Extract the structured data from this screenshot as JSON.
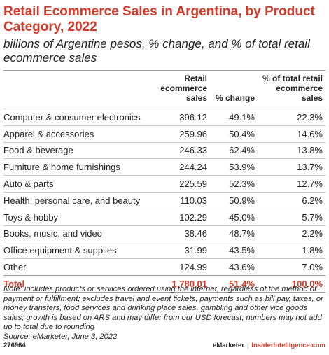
{
  "chart_data": {
    "type": "table",
    "title": "Retail Ecommerce Sales in Argentina, by Product Category, 2022",
    "subtitle": "billions of Argentine pesos, % change, and % of total retail ecommerce sales",
    "columns": [
      "Retail ecommerce sales",
      "% change",
      "% of total retail ecommerce sales"
    ],
    "rows": [
      {
        "category": "Computer & consumer electronics",
        "sales": "396.12",
        "change": "49.1%",
        "share": "22.3%"
      },
      {
        "category": "Apparel & accessories",
        "sales": "259.96",
        "change": "50.4%",
        "share": "14.6%"
      },
      {
        "category": "Food & beverage",
        "sales": "246.33",
        "change": "62.4%",
        "share": "13.8%"
      },
      {
        "category": "Furniture & home furnishings",
        "sales": "244.24",
        "change": "53.9%",
        "share": "13.7%"
      },
      {
        "category": "Auto & parts",
        "sales": "225.59",
        "change": "52.3%",
        "share": "12.7%"
      },
      {
        "category": "Health, personal care, and beauty",
        "sales": "110.03",
        "change": "50.9%",
        "share": "6.2%"
      },
      {
        "category": "Toys & hobby",
        "sales": "102.29",
        "change": "45.0%",
        "share": "5.7%"
      },
      {
        "category": "Books, music, and video",
        "sales": "38.46",
        "change": "48.7%",
        "share": "2.2%"
      },
      {
        "category": "Office equipment & supplies",
        "sales": "31.99",
        "change": "43.5%",
        "share": "1.8%"
      },
      {
        "category": "Other",
        "sales": "124.99",
        "change": "43.6%",
        "share": "7.0%"
      }
    ],
    "total": {
      "category": "Total",
      "sales": "1,780.01",
      "change": "51.4%",
      "share": "100.0%"
    }
  },
  "note": "Note: includes products or services ordered using the internet, regardless of the method of payment or fulfillment; excludes travel and event tickets, payments such as bill pay, taxes, or money transfers, food services and drinking place sales, gambling and other vice goods sales; growth is based on ARS and may differ from our USD forecast; numbers may not add up to total due to rounding",
  "source": "Source: eMarketer, June 3, 2022",
  "footer": {
    "chart_id": "276964",
    "brand": "eMarketer",
    "separator": "|",
    "brand2": "InsiderIntelligence.com"
  },
  "colors": {
    "accent": "#d23a2a"
  }
}
